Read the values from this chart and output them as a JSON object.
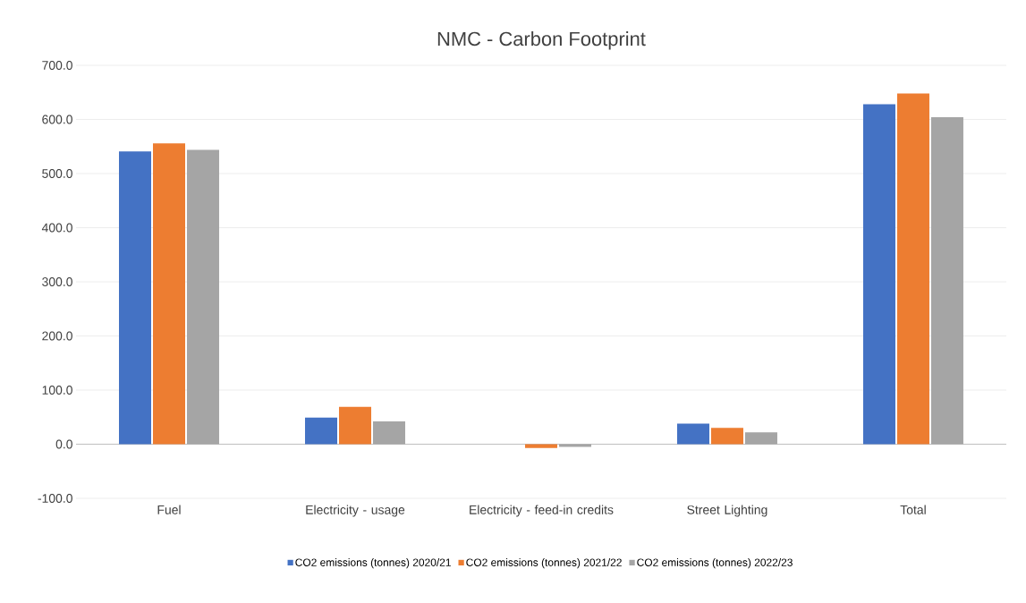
{
  "chart_data": {
    "type": "bar",
    "title": "NMC - Carbon Footprint",
    "categories": [
      "Fuel",
      "Electricity - usage",
      "Electricity - feed-in credits",
      "Street Lighting",
      "Total"
    ],
    "series": [
      {
        "name": "CO2 emissions (tonnes) 2020/21",
        "color": "#4472c4",
        "values": [
          541,
          49,
          null,
          38,
          628
        ]
      },
      {
        "name": "CO2 emissions (tonnes) 2021/22",
        "color": "#ed7d31",
        "values": [
          556,
          69,
          -7,
          30,
          648
        ]
      },
      {
        "name": "CO2 emissions (tonnes) 2022/23",
        "color": "#a5a5a5",
        "values": [
          544,
          42,
          -5,
          22,
          604
        ]
      }
    ],
    "ylim": [
      -100,
      700
    ],
    "yticks": [
      {
        "value": -100,
        "label": "-100.0"
      },
      {
        "value": 0,
        "label": "0.0"
      },
      {
        "value": 100,
        "label": "100.0"
      },
      {
        "value": 200,
        "label": "200.0"
      },
      {
        "value": 300,
        "label": "300.0"
      },
      {
        "value": 400,
        "label": "400.0"
      },
      {
        "value": 500,
        "label": "500.0"
      },
      {
        "value": 600,
        "label": "600.0"
      },
      {
        "value": 700,
        "label": "700.0"
      }
    ],
    "grid": "y",
    "legend": "bottom"
  }
}
